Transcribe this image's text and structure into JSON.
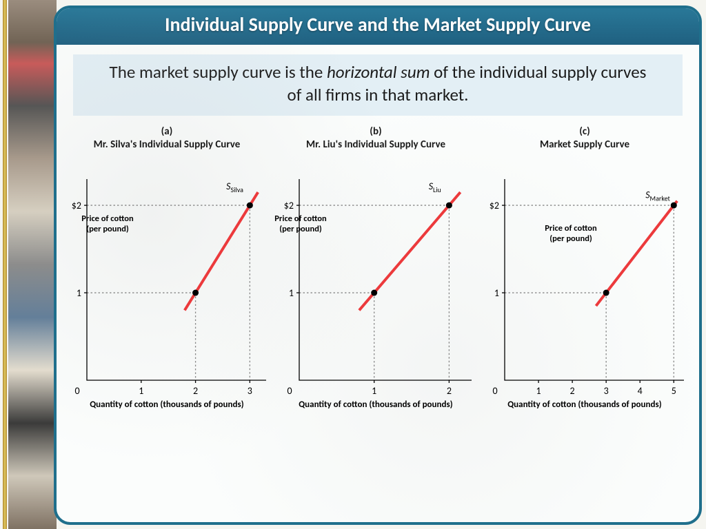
{
  "slide": {
    "title": "Individual Supply Curve and the Market Supply Curve",
    "subtitle_pre": "The market supply curve is the ",
    "subtitle_em": "horizontal sum",
    "subtitle_post": " of the individual supply curves of all firms in that market."
  },
  "common": {
    "y_axis_label": "Price of cotton (per pound)",
    "x_axis_label": "Quantity of cotton (thousands of pounds)",
    "y_ticks": [
      "$2",
      "1"
    ],
    "y_tick_vals": [
      2,
      1
    ],
    "line_color": "#ec3a3c",
    "line_width": 4,
    "point_color": "#000000",
    "grid_color": "#888888",
    "background_color": "#fbfdfc",
    "ylim": [
      0,
      2.3
    ],
    "title_fontsize": 15,
    "axis_label_fontsize": 12.5,
    "tick_fontsize": 14
  },
  "charts": [
    {
      "letter": "(a)",
      "title": "Mr. Silva's Individual Supply Curve",
      "curve_label": "S",
      "curve_sub": "Silva",
      "x_ticks": [
        0,
        1,
        2,
        3
      ],
      "xmax": 3.3,
      "points": [
        [
          2,
          1
        ],
        [
          3,
          2
        ]
      ],
      "line_ext": [
        [
          1.8,
          0.8
        ],
        [
          3.15,
          2.15
        ]
      ]
    },
    {
      "letter": "(b)",
      "title": "Mr. Liu's Individual Supply Curve",
      "curve_label": "S",
      "curve_sub": "Liu",
      "x_ticks": [
        0,
        1,
        2
      ],
      "xmax": 2.3,
      "points": [
        [
          1,
          1
        ],
        [
          2,
          2
        ]
      ],
      "line_ext": [
        [
          0.8,
          0.8
        ],
        [
          2.15,
          2.15
        ]
      ]
    },
    {
      "letter": "(c)",
      "title": "Market Supply Curve",
      "curve_label": "S",
      "curve_sub": "Market",
      "x_ticks": [
        0,
        1,
        2,
        3,
        4,
        5
      ],
      "xmax": 5.3,
      "points": [
        [
          3,
          1
        ],
        [
          5,
          2
        ]
      ],
      "line_ext": [
        [
          2.7,
          0.85
        ],
        [
          5.1,
          2.05
        ]
      ]
    }
  ]
}
